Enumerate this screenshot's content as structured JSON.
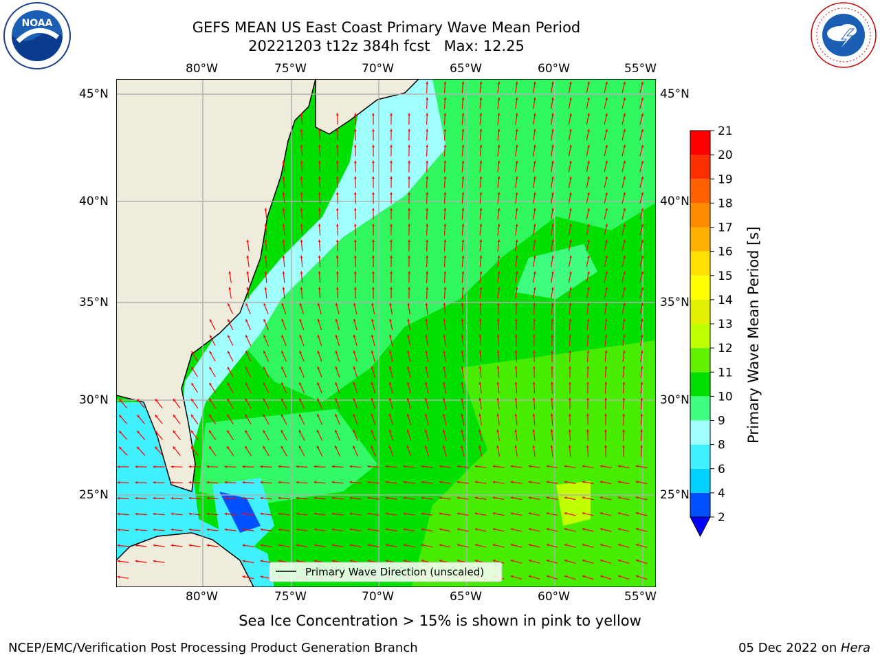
{
  "title": {
    "line1": "GEFS MEAN US East Coast Primary Wave Mean Period",
    "line2": "20221203 t12z 384h fcst   Max: 12.25"
  },
  "map": {
    "lon_labels": [
      "80°W",
      "75°W",
      "70°W",
      "65°W",
      "60°W",
      "55°W"
    ],
    "lat_labels": [
      "45°N",
      "40°N",
      "35°N",
      "30°N",
      "25°N"
    ],
    "legend_label": "Primary Wave Direction (unscaled)",
    "arrow_color": "#ff0000",
    "land_color": "#efecdc"
  },
  "colorbar": {
    "label": "Primary Wave Mean Period [s]",
    "ticks": [
      "2",
      "4",
      "6",
      "8",
      "9",
      "10",
      "11",
      "12",
      "13",
      "14",
      "15",
      "16",
      "17",
      "18",
      "19",
      "20",
      "21"
    ],
    "colors": [
      "#0050ff",
      "#00d0ff",
      "#40f0ff",
      "#a0ffff",
      "#40ff80",
      "#00e000",
      "#60f000",
      "#c0ff00",
      "#e0f000",
      "#ffff00",
      "#ffe000",
      "#ffb000",
      "#ff8c00",
      "#ff6000",
      "#ff3000",
      "#ff0000"
    ],
    "extend_color": "#0000ff"
  },
  "note": "Sea Ice Concentration > 15% is shown in pink to yellow",
  "footer": {
    "left": "NCEP/EMC/Verification Post Processing Product Generation Branch",
    "right_date": "05 Dec 2022 on ",
    "right_host": "Hera"
  },
  "logos": {
    "noaa_text": "NOAA",
    "nws_text": "NATIONAL WEATHER SERVICE"
  }
}
